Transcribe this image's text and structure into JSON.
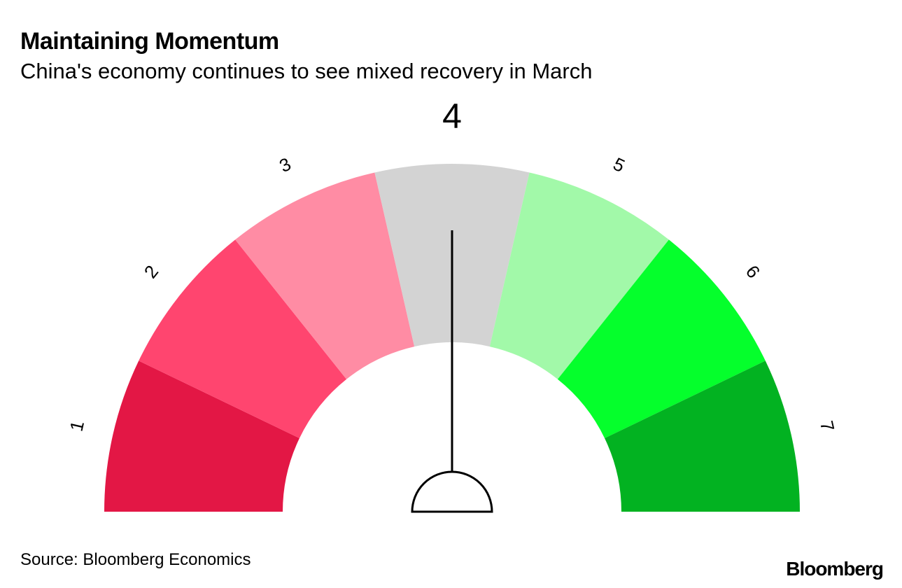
{
  "title": "Maintaining Momentum",
  "subtitle": "China's economy continues to see mixed recovery in March",
  "source": "Source: Bloomberg Economics",
  "brand": "Bloomberg",
  "chart_data": {
    "type": "gauge",
    "categories": [
      "1",
      "2",
      "3",
      "4",
      "5",
      "6",
      "7"
    ],
    "value": 4,
    "value_label": "4",
    "segment_colors": [
      "#e31745",
      "#ff456f",
      "#ff8ca4",
      "#d3d3d3",
      "#a2f9a9",
      "#05ff2c",
      "#02b221"
    ],
    "needle_color": "#000000"
  }
}
